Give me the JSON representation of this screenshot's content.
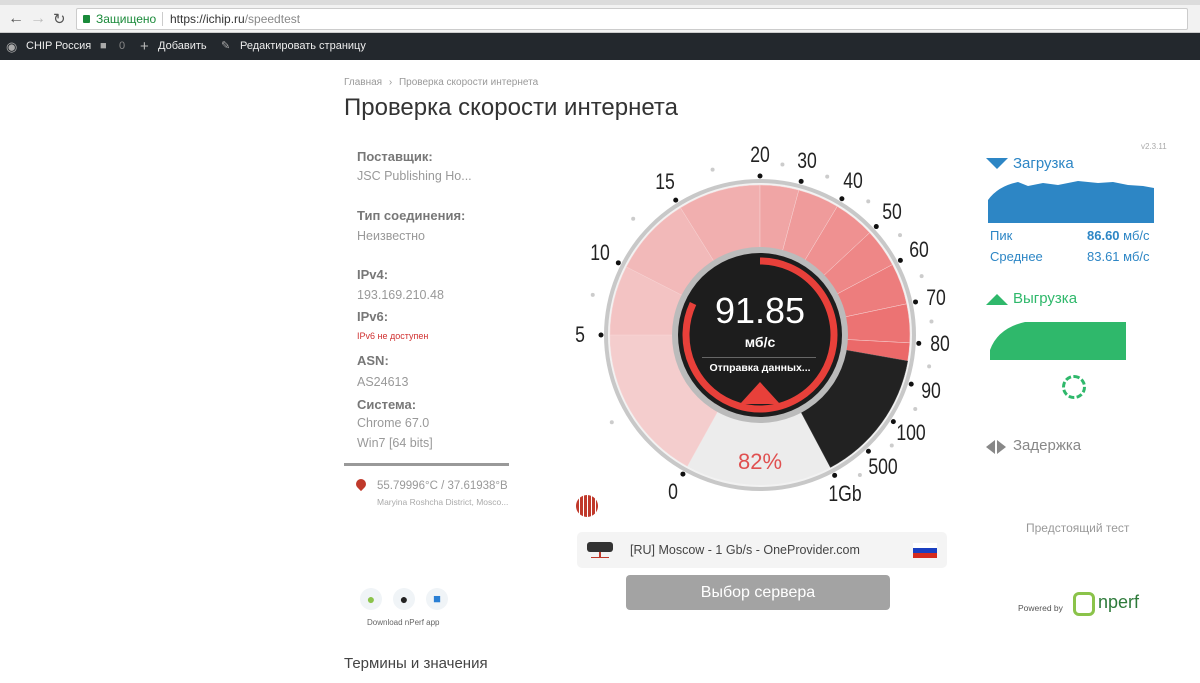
{
  "browser": {
    "secure_label": "Защищено",
    "url_host": "https://ichip.ru",
    "url_path": "/speedtest"
  },
  "wpbar": {
    "site": "CHIP Россия",
    "comments": "0",
    "add": "Добавить",
    "edit": "Редактировать страницу"
  },
  "breadcrumb": {
    "home": "Главная",
    "sep": "›",
    "current": "Проверка скорости интернета"
  },
  "title": "Проверка скорости интернета",
  "info": {
    "provider_label": "Поставщик:",
    "provider": "JSC Publishing Ho...",
    "conn_label": "Тип соединения:",
    "conn": "Неизвестно",
    "ipv4_label": "IPv4:",
    "ipv4": "193.169.210.48",
    "ipv6_label": "IPv6:",
    "ipv6": "IPv6 не доступен",
    "asn_label": "ASN:",
    "asn": "AS24613",
    "system_label": "Система:",
    "browser": "Chrome 67.0",
    "os": "Win7 [64 bits]",
    "coords": "55.79996°С / 37.61938°В",
    "location": "Maryina Roshcha District, Mosco..."
  },
  "gauge": {
    "ticks": [
      "0",
      "5",
      "10",
      "15",
      "20",
      "30",
      "40",
      "50",
      "60",
      "70",
      "80",
      "90",
      "100",
      "500",
      "1Gb"
    ],
    "speed": "91.85",
    "unit": "мб/с",
    "status": "Отправка данных...",
    "percent": "82%",
    "progress": 0.82,
    "accent": "#e8403a"
  },
  "server": {
    "name": "[RU] Moscow - 1 Gb/s - OneProvider.com",
    "button": "Выбор сервера"
  },
  "apps": {
    "label": "Download nPerf app"
  },
  "results": {
    "version": "v2.3.11",
    "download_label": "Загрузка",
    "peak_label": "Пик",
    "peak": "86.60",
    "avg_label": "Среднее",
    "avg": "83.61",
    "unit": "мб/с",
    "upload_label": "Выгрузка",
    "latency_label": "Задержка",
    "upcoming": "Предстоящий тест",
    "powered": "Powered by",
    "brand": "nperf",
    "download_color": "#2d86c5",
    "upload_color": "#2fb86b"
  },
  "terms": "Термины и значения"
}
